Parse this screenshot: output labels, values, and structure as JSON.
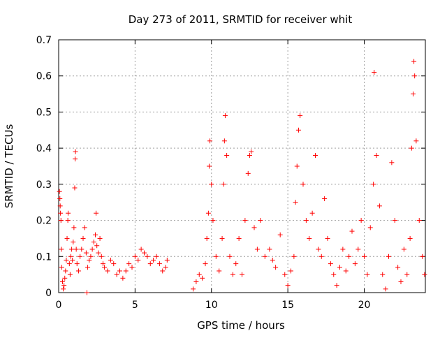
{
  "chart_data": {
    "type": "scatter",
    "title": "Day 273 of 2011, SRMTID for receiver whit",
    "xlabel": "GPS time / hours",
    "ylabel": "SRMTID / TECUs",
    "xlim": [
      0,
      24
    ],
    "ylim": [
      0,
      0.7
    ],
    "xticks": [
      0,
      5,
      10,
      15,
      20
    ],
    "yticks": [
      0,
      0.1,
      0.2,
      0.3,
      0.4,
      0.5,
      0.6,
      0.7
    ],
    "xtick_labels": [
      "0",
      "5",
      "10",
      "15",
      "20"
    ],
    "ytick_labels": [
      "0",
      "0.1",
      "0.2",
      "0.3",
      "0.4",
      "0.5",
      "0.6",
      "0.7"
    ],
    "grid": true,
    "marker": "+",
    "color": "#ff0000",
    "series": [
      {
        "name": "SRMTID",
        "points": [
          [
            0.05,
            0.28
          ],
          [
            0.08,
            0.26
          ],
          [
            0.1,
            0.24
          ],
          [
            0.12,
            0.22
          ],
          [
            0.15,
            0.2
          ],
          [
            0.18,
            0.12
          ],
          [
            0.2,
            0.07
          ],
          [
            0.25,
            0.03
          ],
          [
            0.3,
            0.01
          ],
          [
            0.35,
            0.02
          ],
          [
            0.4,
            0.04
          ],
          [
            0.45,
            0.06
          ],
          [
            0.5,
            0.09
          ],
          [
            0.55,
            0.15
          ],
          [
            0.6,
            0.2
          ],
          [
            0.62,
            0.22
          ],
          [
            0.7,
            0.08
          ],
          [
            0.75,
            0.05
          ],
          [
            0.8,
            0.1
          ],
          [
            0.85,
            0.12
          ],
          [
            0.9,
            0.09
          ],
          [
            0.95,
            0.14
          ],
          [
            1.0,
            0.18
          ],
          [
            1.05,
            0.29
          ],
          [
            1.08,
            0.37
          ],
          [
            1.1,
            0.39
          ],
          [
            1.15,
            0.12
          ],
          [
            1.2,
            0.08
          ],
          [
            1.3,
            0.06
          ],
          [
            1.4,
            0.1
          ],
          [
            1.5,
            0.12
          ],
          [
            1.6,
            0.15
          ],
          [
            1.7,
            0.18
          ],
          [
            1.8,
            0.11
          ],
          [
            1.85,
            0.0
          ],
          [
            1.9,
            0.07
          ],
          [
            2.0,
            0.09
          ],
          [
            2.1,
            0.1
          ],
          [
            2.2,
            0.12
          ],
          [
            2.3,
            0.14
          ],
          [
            2.4,
            0.16
          ],
          [
            2.45,
            0.22
          ],
          [
            2.5,
            0.13
          ],
          [
            2.6,
            0.11
          ],
          [
            2.7,
            0.15
          ],
          [
            2.8,
            0.1
          ],
          [
            2.9,
            0.08
          ],
          [
            3.0,
            0.07
          ],
          [
            3.2,
            0.06
          ],
          [
            3.4,
            0.09
          ],
          [
            3.6,
            0.08
          ],
          [
            3.8,
            0.05
          ],
          [
            4.0,
            0.06
          ],
          [
            4.2,
            0.04
          ],
          [
            4.4,
            0.06
          ],
          [
            4.6,
            0.08
          ],
          [
            4.8,
            0.07
          ],
          [
            5.0,
            0.1
          ],
          [
            5.2,
            0.09
          ],
          [
            5.4,
            0.12
          ],
          [
            5.6,
            0.11
          ],
          [
            5.8,
            0.1
          ],
          [
            6.0,
            0.08
          ],
          [
            6.2,
            0.09
          ],
          [
            6.4,
            0.1
          ],
          [
            6.6,
            0.08
          ],
          [
            6.8,
            0.06
          ],
          [
            7.0,
            0.07
          ],
          [
            7.1,
            0.09
          ],
          [
            8.8,
            0.01
          ],
          [
            9.0,
            0.03
          ],
          [
            9.2,
            0.05
          ],
          [
            9.4,
            0.04
          ],
          [
            9.6,
            0.08
          ],
          [
            9.7,
            0.15
          ],
          [
            9.8,
            0.22
          ],
          [
            9.85,
            0.35
          ],
          [
            9.9,
            0.42
          ],
          [
            10.0,
            0.3
          ],
          [
            10.1,
            0.2
          ],
          [
            10.3,
            0.1
          ],
          [
            10.5,
            0.06
          ],
          [
            10.7,
            0.15
          ],
          [
            10.8,
            0.3
          ],
          [
            10.85,
            0.42
          ],
          [
            10.9,
            0.49
          ],
          [
            11.0,
            0.38
          ],
          [
            11.2,
            0.1
          ],
          [
            11.4,
            0.05
          ],
          [
            11.6,
            0.08
          ],
          [
            11.8,
            0.15
          ],
          [
            12.0,
            0.05
          ],
          [
            12.2,
            0.2
          ],
          [
            12.4,
            0.33
          ],
          [
            12.5,
            0.38
          ],
          [
            12.6,
            0.39
          ],
          [
            12.8,
            0.18
          ],
          [
            13.0,
            0.12
          ],
          [
            13.2,
            0.2
          ],
          [
            13.5,
            0.1
          ],
          [
            13.8,
            0.12
          ],
          [
            14.0,
            0.09
          ],
          [
            14.2,
            0.07
          ],
          [
            14.5,
            0.16
          ],
          [
            14.8,
            0.05
          ],
          [
            15.0,
            0.02
          ],
          [
            15.2,
            0.06
          ],
          [
            15.4,
            0.1
          ],
          [
            15.5,
            0.25
          ],
          [
            15.6,
            0.35
          ],
          [
            15.7,
            0.45
          ],
          [
            15.8,
            0.49
          ],
          [
            16.0,
            0.3
          ],
          [
            16.2,
            0.2
          ],
          [
            16.4,
            0.15
          ],
          [
            16.6,
            0.22
          ],
          [
            16.8,
            0.38
          ],
          [
            17.0,
            0.12
          ],
          [
            17.2,
            0.1
          ],
          [
            17.4,
            0.26
          ],
          [
            17.6,
            0.15
          ],
          [
            17.8,
            0.08
          ],
          [
            18.0,
            0.05
          ],
          [
            18.2,
            0.02
          ],
          [
            18.4,
            0.07
          ],
          [
            18.6,
            0.12
          ],
          [
            18.8,
            0.06
          ],
          [
            19.0,
            0.1
          ],
          [
            19.2,
            0.17
          ],
          [
            19.4,
            0.08
          ],
          [
            19.6,
            0.12
          ],
          [
            19.8,
            0.2
          ],
          [
            20.0,
            0.1
          ],
          [
            20.2,
            0.05
          ],
          [
            20.4,
            0.18
          ],
          [
            20.6,
            0.3
          ],
          [
            20.65,
            0.61
          ],
          [
            20.8,
            0.38
          ],
          [
            21.0,
            0.24
          ],
          [
            21.2,
            0.05
          ],
          [
            21.4,
            0.01
          ],
          [
            21.6,
            0.1
          ],
          [
            21.8,
            0.36
          ],
          [
            22.0,
            0.2
          ],
          [
            22.2,
            0.07
          ],
          [
            22.4,
            0.03
          ],
          [
            22.6,
            0.12
          ],
          [
            22.8,
            0.05
          ],
          [
            23.0,
            0.15
          ],
          [
            23.1,
            0.4
          ],
          [
            23.2,
            0.55
          ],
          [
            23.25,
            0.64
          ],
          [
            23.3,
            0.6
          ],
          [
            23.4,
            0.42
          ],
          [
            23.6,
            0.2
          ],
          [
            23.8,
            0.1
          ],
          [
            23.95,
            0.05
          ]
        ]
      }
    ]
  }
}
